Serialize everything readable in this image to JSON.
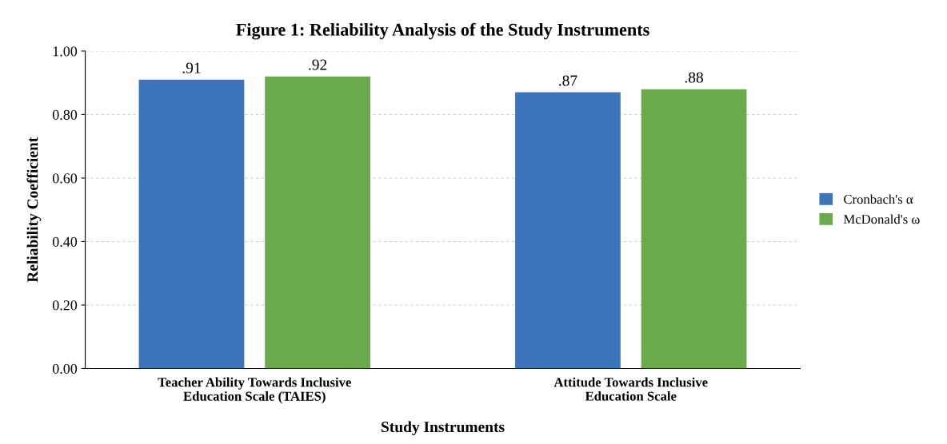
{
  "chart_data": {
    "type": "bar",
    "title": "Figure 1: Reliability Analysis of the Study Instruments",
    "xlabel": "Study Instruments",
    "ylabel": "Reliability Coefficient",
    "categories": [
      "Teacher Ability Towards Inclusive\nEducation Scale (TAIES)",
      "Attitude Towards Inclusive\nEducation Scale"
    ],
    "series": [
      {
        "name": "Cronbach's α",
        "color": "#3b74bb",
        "values": [
          0.91,
          0.87
        ],
        "value_labels": [
          ".91",
          ".87"
        ]
      },
      {
        "name": "McDonald's ω",
        "color": "#6aaa4c",
        "values": [
          0.92,
          0.88
        ],
        "value_labels": [
          ".92",
          ".88"
        ]
      }
    ],
    "ylim": [
      0,
      1
    ],
    "yticks": [
      {
        "value": 0,
        "label": "0.00"
      },
      {
        "value": 0.2,
        "label": "0.20"
      },
      {
        "value": 0.4,
        "label": "0.40"
      },
      {
        "value": 0.6,
        "label": "0.60"
      },
      {
        "value": 0.8,
        "label": "0.80"
      },
      {
        "value": 1,
        "label": "1.00"
      }
    ],
    "grid": "y",
    "legend": "right"
  }
}
